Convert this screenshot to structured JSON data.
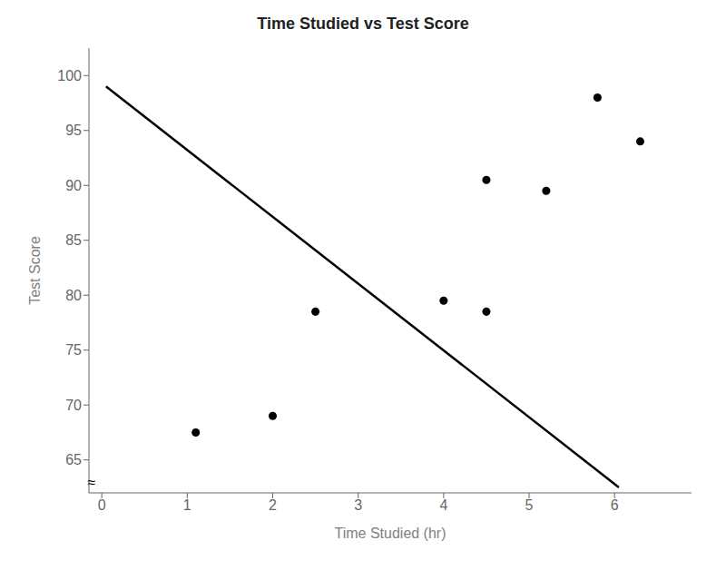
{
  "chart_data": {
    "type": "scatter",
    "title": "Time Studied vs Test Score",
    "x_label": "Time Studied  (hr)",
    "y_label": "Test Score",
    "series": [
      {
        "type": "scatter",
        "color": "#000000",
        "marker": "circle",
        "x": [
          1.1,
          2.0,
          2.5,
          4.0,
          4.5,
          4.5,
          5.2,
          5.8,
          6.3
        ],
        "values": [
          67.5,
          69.0,
          78.5,
          79.5,
          90.5,
          78.5,
          89.5,
          98.0,
          94.0
        ]
      },
      {
        "type": "line",
        "color": "#000000",
        "line_style": "solid",
        "x": [
          0.05,
          6.05
        ],
        "values": [
          99.0,
          62.5
        ]
      }
    ],
    "xlim": [
      -0.15,
      6.9
    ],
    "ylim": [
      62.0,
      102.5
    ],
    "xticks": [
      0,
      1,
      2,
      3,
      4,
      5,
      6
    ],
    "yticks": [
      65,
      70,
      75,
      80,
      85,
      90,
      95,
      100
    ],
    "grid": false,
    "annotations": [
      {
        "text": "≈",
        "x": -0.12,
        "y": 63.0
      }
    ]
  }
}
